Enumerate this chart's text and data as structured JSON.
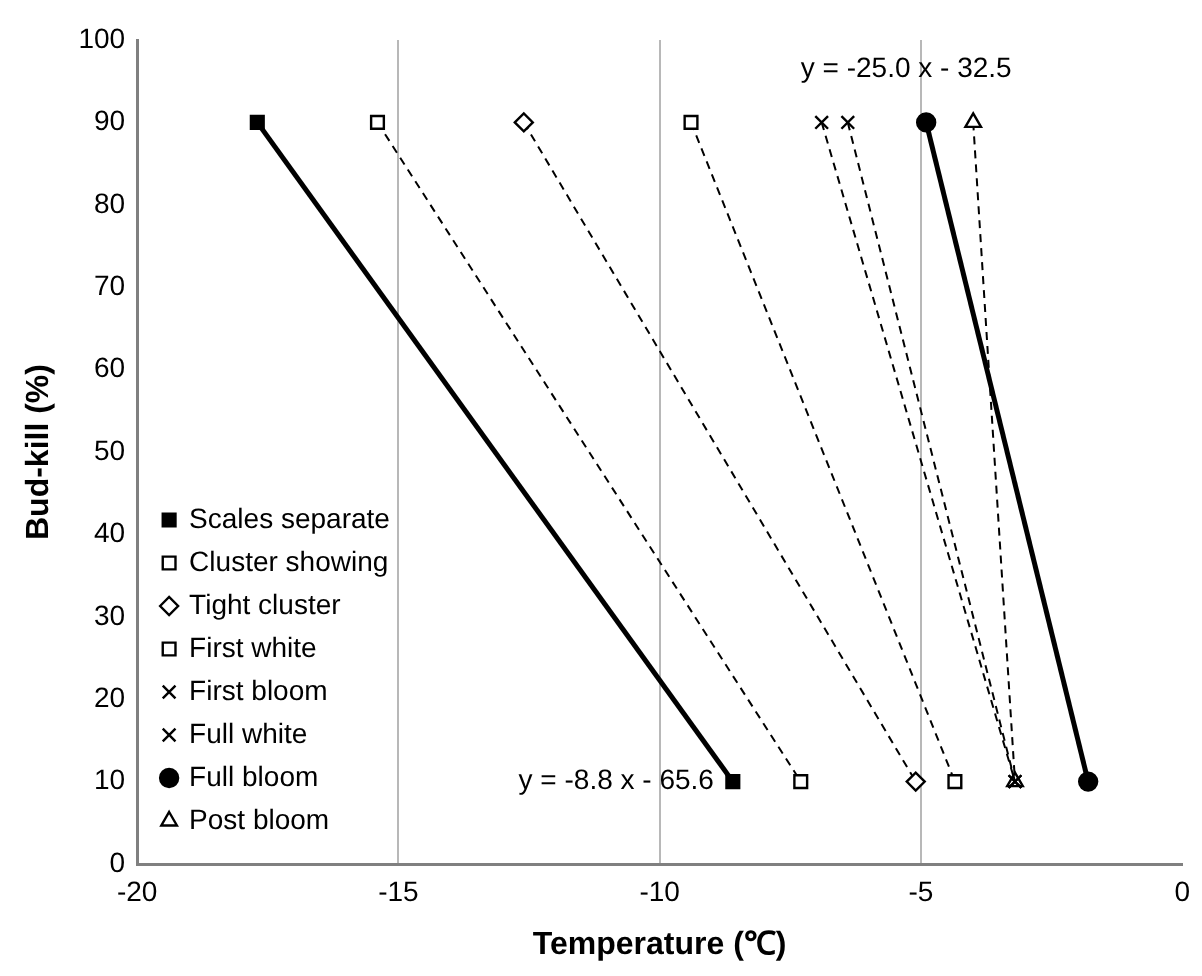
{
  "chart_data": {
    "type": "line",
    "xlabel": "Temperature (℃)",
    "ylabel": "Bud-kill (%)",
    "xlim": [
      -20,
      0
    ],
    "xticks": [
      -20,
      -15,
      -10,
      -5,
      0
    ],
    "ylim": [
      0,
      100
    ],
    "yticks": [
      0,
      10,
      20,
      30,
      40,
      50,
      60,
      70,
      80,
      90,
      100
    ],
    "grid": "x",
    "legend": "bottom left",
    "series": [
      {
        "name": "Scales separate",
        "color": "#000000",
        "x": [
          -17.7,
          -8.6
        ],
        "values": [
          90,
          10
        ],
        "marker": "square",
        "line_style": "solid"
      },
      {
        "name": "Cluster showing",
        "color": "#000000",
        "x": [
          -15.4,
          -7.3
        ],
        "values": [
          90,
          10
        ],
        "marker": "square",
        "line_style": "dashed"
      },
      {
        "name": "Tight cluster",
        "color": "#000000",
        "x": [
          -12.6,
          -5.1
        ],
        "values": [
          90,
          10
        ],
        "marker": "diamond",
        "line_style": "dashed"
      },
      {
        "name": "First white",
        "color": "#000000",
        "x": [
          -9.4,
          -4.35
        ],
        "values": [
          90,
          10
        ],
        "marker": "square",
        "line_style": "dashed"
      },
      {
        "name": "First bloom",
        "color": "#000000",
        "x": [
          -6.9,
          -3.2
        ],
        "values": [
          90,
          10
        ],
        "marker": "cross",
        "line_style": "dashed"
      },
      {
        "name": "Full white",
        "color": "#000000",
        "x": [
          -6.4,
          -3.2
        ],
        "values": [
          90,
          10
        ],
        "marker": "cross",
        "line_style": "dashed"
      },
      {
        "name": "Full bloom",
        "color": "#000000",
        "x": [
          -4.9,
          -1.8
        ],
        "values": [
          90,
          10
        ],
        "marker": "circle",
        "line_style": "solid"
      },
      {
        "name": "Post bloom",
        "color": "#000000",
        "x": [
          -4.0,
          -3.2
        ],
        "values": [
          90,
          10
        ],
        "marker": "triangle",
        "line_style": "dashed"
      }
    ],
    "annotations": [
      "y = -25.0 x - 32.5",
      "y = -8.8 x - 65.6"
    ]
  }
}
